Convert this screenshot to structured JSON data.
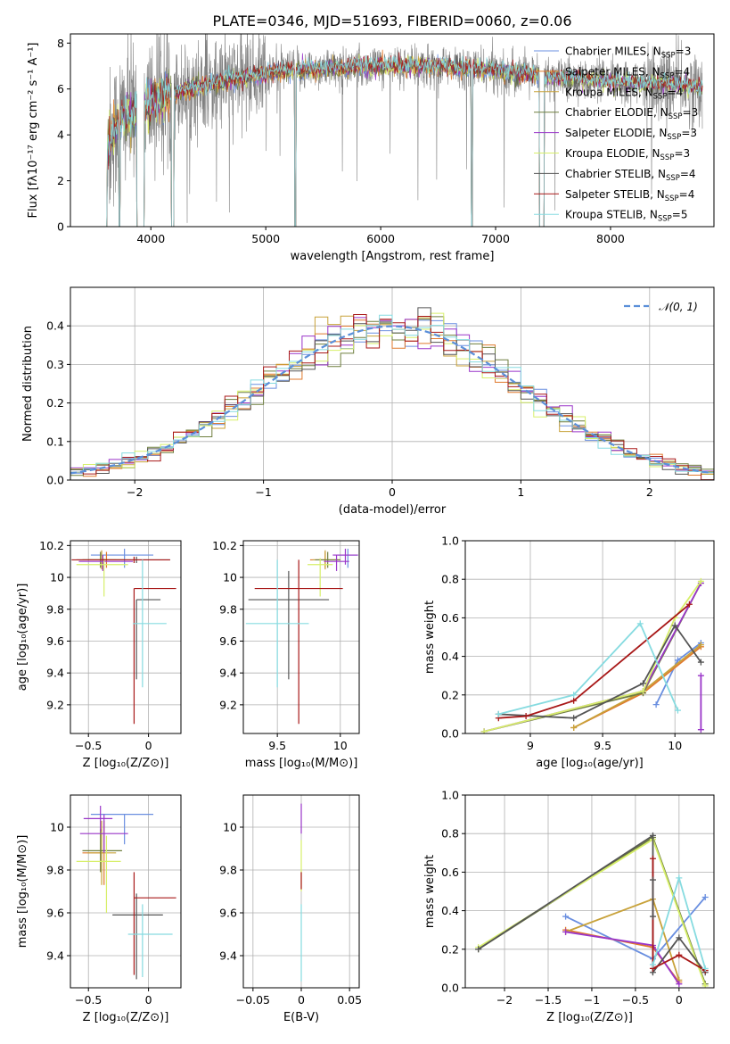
{
  "figure_title": "PLATE=0346, MJD=51693, FIBERID=0060, z=0.06",
  "colors": {
    "Chabrier MILES": "#6a8fe0",
    "Salpeter MILES": "#e07a2e",
    "Kroupa MILES": "#c8a23a",
    "Chabrier ELODIE": "#6f7f3f",
    "Salpeter ELODIE": "#9a35c9",
    "Kroupa ELODIE": "#d7ef6a",
    "Chabrier STELIB": "#555555",
    "Salpeter STELIB": "#a81818",
    "Kroupa STELIB": "#86dbe0",
    "data": "#808080",
    "normal": "#5b8fd9"
  },
  "chart_data": [
    {
      "id": "spectrum",
      "type": "line",
      "title": "PLATE=0346, MJD=51693, FIBERID=0060, z=0.06",
      "xlabel": "wavelength [Angstrom, rest frame]",
      "ylabel": "Flux [fλ10⁻¹⁷ erg cm⁻² s⁻¹ A⁻¹]",
      "xlim": [
        3300,
        8900
      ],
      "ylim": [
        0,
        8.4
      ],
      "xticks": [
        4000,
        5000,
        6000,
        7000,
        8000
      ],
      "yticks": [
        0,
        2,
        4,
        6,
        8
      ],
      "grid": false,
      "legend": "right",
      "legend_entries": [
        {
          "label": "Chabrier MILES, N",
          "sub": "SSP",
          "suffix": "=3"
        },
        {
          "label": "Salpeter MILES, N",
          "sub": "SSP",
          "suffix": "=4"
        },
        {
          "label": "Kroupa MILES, N",
          "sub": "SSP",
          "suffix": "=4"
        },
        {
          "label": "Chabrier ELODIE, N",
          "sub": "SSP",
          "suffix": "=3"
        },
        {
          "label": "Salpeter ELODIE, N",
          "sub": "SSP",
          "suffix": "=3"
        },
        {
          "label": "Kroupa ELODIE, N",
          "sub": "SSP",
          "suffix": "=3"
        },
        {
          "label": "Chabrier STELIB, N",
          "sub": "SSP",
          "suffix": "=4"
        },
        {
          "label": "Salpeter STELIB, N",
          "sub": "SSP",
          "suffix": "=4"
        },
        {
          "label": "Kroupa STELIB, N",
          "sub": "SSP",
          "suffix": "=5"
        }
      ],
      "continuum": [
        [
          3570,
          2.5
        ],
        [
          3650,
          3.8
        ],
        [
          3750,
          4.8
        ],
        [
          3900,
          5.0
        ],
        [
          4000,
          5.4
        ],
        [
          4200,
          5.8
        ],
        [
          4500,
          6.2
        ],
        [
          5000,
          6.7
        ],
        [
          5500,
          6.9
        ],
        [
          6000,
          7.0
        ],
        [
          6500,
          7.0
        ],
        [
          7000,
          6.8
        ],
        [
          7500,
          6.5
        ],
        [
          8000,
          6.3
        ],
        [
          8500,
          6.2
        ],
        [
          8800,
          6.0
        ]
      ],
      "gaps": [
        [
          3570,
          3620
        ],
        [
          3720,
          3730
        ],
        [
          3880,
          3940
        ],
        [
          4180,
          4200
        ],
        [
          5250,
          5260
        ],
        [
          6790,
          6800
        ],
        [
          7380,
          7420
        ]
      ]
    },
    {
      "id": "residuals",
      "type": "histogram",
      "xlabel": "(data-model)/error",
      "ylabel": "Normed distribution",
      "xlim": [
        -2.5,
        2.5
      ],
      "ylim": [
        0,
        0.5
      ],
      "xticks": [
        -2,
        -1,
        0,
        1,
        2
      ],
      "yticks": [
        0.0,
        0.1,
        0.2,
        0.3,
        0.4
      ],
      "grid": true,
      "bin_width": 0.1,
      "legend": "top-right",
      "legend_label": "𝒩(0, 1)"
    },
    {
      "id": "age-vs-Z",
      "type": "errorbar",
      "xlabel": "Z [log₁₀(Z/Z⊙)]",
      "ylabel": "age  [log₁₀(age/yr)]",
      "xlim": [
        -0.65,
        0.27
      ],
      "ylim": [
        9.02,
        10.23
      ],
      "xticks": [
        -0.5,
        0.0
      ],
      "yticks": [
        9.2,
        9.4,
        9.6,
        9.8,
        10.0,
        10.2
      ],
      "grid": true,
      "points": [
        {
          "model": "Chabrier MILES",
          "x": -0.2,
          "xerr": [
            0.28,
            0.24
          ],
          "y": 10.14,
          "yerr": [
            0.08,
            0.04
          ]
        },
        {
          "model": "Salpeter MILES",
          "x": -0.35,
          "xerr": [
            0.2,
            0.2
          ],
          "y": 10.11,
          "yerr": [
            0.05,
            0.05
          ]
        },
        {
          "model": "Kroupa MILES",
          "x": -0.39,
          "xerr": [
            0.12,
            0.12
          ],
          "y": 10.11,
          "yerr": [
            0.06,
            0.06
          ]
        },
        {
          "model": "Chabrier ELODIE",
          "x": -0.4,
          "xerr": [
            0.15,
            0.2
          ],
          "y": 10.11,
          "yerr": [
            0.05,
            0.05
          ]
        },
        {
          "model": "Salpeter ELODIE",
          "x": -0.38,
          "xerr": [
            0.2,
            0.25
          ],
          "y": 10.1,
          "yerr": [
            0.06,
            0.04
          ]
        },
        {
          "model": "Kroupa ELODIE",
          "x": -0.37,
          "xerr": [
            0.23,
            0.2
          ],
          "y": 10.08,
          "yerr": [
            0.2,
            0.04
          ]
        },
        {
          "model": "Chabrier STELIB",
          "x": -0.1,
          "xerr": [
            0.5,
            0.28
          ],
          "y": 10.11,
          "yerr": [
            0.02,
            0.02
          ]
        },
        {
          "model": "Salpeter STELIB",
          "x": -0.12,
          "xerr": [
            0.52,
            0.3
          ],
          "y": 10.11,
          "yerr": [
            0.02,
            0.02
          ]
        },
        {
          "model": "Chabrier STELIB",
          "x": -0.1,
          "xerr": [
            0.0,
            0.2
          ],
          "y": 9.86,
          "yerr": [
            0.5,
            0.0
          ]
        },
        {
          "model": "Salpeter STELIB",
          "x": -0.12,
          "xerr": [
            0.0,
            0.35
          ],
          "y": 9.93,
          "yerr": [
            0.85,
            0.0
          ]
        },
        {
          "model": "Kroupa STELIB",
          "x": -0.05,
          "xerr": [
            0.08,
            0.2
          ],
          "y": 9.71,
          "yerr": [
            0.4,
            0.4
          ]
        }
      ]
    },
    {
      "id": "age-vs-mass",
      "type": "errorbar",
      "xlabel": "mass [log₁₀(M/M⊙)]",
      "ylabel": "",
      "xlim": [
        9.23,
        10.15
      ],
      "ylim": [
        9.02,
        10.23
      ],
      "xticks": [
        9.5,
        10.0
      ],
      "yticks": [
        9.2,
        9.4,
        9.6,
        9.8,
        10.0,
        10.2
      ],
      "grid": true,
      "points": [
        {
          "model": "Chabrier MILES",
          "x": 10.06,
          "xerr": [
            0.08,
            0.08
          ],
          "y": 10.14,
          "yerr": [
            0.08,
            0.04
          ]
        },
        {
          "model": "Salpeter MILES",
          "x": 9.88,
          "xerr": [
            0.12,
            0.12
          ],
          "y": 10.11,
          "yerr": [
            0.05,
            0.05
          ]
        },
        {
          "model": "Kroupa MILES",
          "x": 9.88,
          "xerr": [
            0.1,
            0.1
          ],
          "y": 10.11,
          "yerr": [
            0.06,
            0.06
          ]
        },
        {
          "model": "Chabrier ELODIE",
          "x": 9.9,
          "xerr": [
            0.1,
            0.1
          ],
          "y": 10.11,
          "yerr": [
            0.05,
            0.05
          ]
        },
        {
          "model": "Salpeter ELODIE",
          "x": 9.97,
          "xerr": [
            0.1,
            0.1
          ],
          "y": 10.1,
          "yerr": [
            0.06,
            0.04
          ]
        },
        {
          "model": "Kroupa ELODIE",
          "x": 9.84,
          "xerr": [
            0.1,
            0.1
          ],
          "y": 10.08,
          "yerr": [
            0.2,
            0.04
          ]
        },
        {
          "model": "Chabrier STELIB",
          "x": 9.59,
          "xerr": [
            0.32,
            0.32
          ],
          "y": 9.86,
          "yerr": [
            0.5,
            0.18
          ]
        },
        {
          "model": "Salpeter STELIB",
          "x": 9.67,
          "xerr": [
            0.35,
            0.35
          ],
          "y": 9.93,
          "yerr": [
            0.85,
            0.18
          ]
        },
        {
          "model": "Kroupa STELIB",
          "x": 9.5,
          "xerr": [
            0.25,
            0.25
          ],
          "y": 9.71,
          "yerr": [
            0.4,
            0.4
          ]
        },
        {
          "model": "Salpeter ELODIE",
          "x": 10.04,
          "xerr": [
            0.1,
            0.1
          ],
          "y": 10.14,
          "yerr": [
            0.06,
            0.04
          ]
        }
      ]
    },
    {
      "id": "weight-vs-age",
      "type": "line",
      "xlabel": "age  [log₁₀(age/yr)]",
      "ylabel": "mass weight",
      "xlim": [
        8.55,
        10.27
      ],
      "ylim": [
        0.0,
        1.0
      ],
      "xticks": [
        9.0,
        9.5,
        10.0
      ],
      "yticks": [
        0.0,
        0.2,
        0.4,
        0.6,
        0.8,
        1.0
      ],
      "grid": true,
      "series": [
        {
          "model": "Chabrier MILES",
          "x": [
            9.87,
            10.02,
            10.18
          ],
          "y": [
            0.15,
            0.38,
            0.47
          ]
        },
        {
          "model": "Salpeter MILES",
          "x": [
            9.3,
            9.78,
            10.18
          ],
          "y": [
            0.03,
            0.21,
            0.45
          ]
        },
        {
          "model": "Kroupa MILES",
          "x": [
            9.3,
            9.78,
            10.18
          ],
          "y": [
            0.03,
            0.22,
            0.46
          ]
        },
        {
          "model": "Chabrier ELODIE",
          "x": [
            8.68,
            9.78,
            10.18
          ],
          "y": [
            0.01,
            0.21,
            0.78
          ]
        },
        {
          "model": "Salpeter ELODIE",
          "x": [
            8.68,
            9.78,
            10.18
          ],
          "y": [
            0.01,
            0.22,
            0.78
          ]
        },
        {
          "model": "Kroupa ELODIE",
          "x": [
            8.68,
            9.78,
            10.0,
            10.18
          ],
          "y": [
            0.01,
            0.22,
            0.6,
            0.79
          ]
        },
        {
          "model": "Chabrier STELIB",
          "x": [
            8.78,
            9.3,
            9.78,
            10.0,
            10.18
          ],
          "y": [
            0.1,
            0.08,
            0.26,
            0.56,
            0.37
          ]
        },
        {
          "model": "Salpeter STELIB",
          "x": [
            8.78,
            8.97,
            9.3,
            10.1
          ],
          "y": [
            0.08,
            0.09,
            0.17,
            0.67
          ]
        },
        {
          "model": "Kroupa STELIB",
          "x": [
            8.78,
            9.3,
            9.76,
            10.02
          ],
          "y": [
            0.1,
            0.2,
            0.57,
            0.12
          ]
        },
        {
          "model": "Salpeter ELODIE",
          "x": [
            10.18,
            10.18
          ],
          "y": [
            0.02,
            0.3
          ]
        }
      ]
    },
    {
      "id": "mass-vs-Z",
      "type": "errorbar",
      "xlabel": "Z [log₁₀(Z/Z⊙)]",
      "ylabel": "mass [log₁₀(M/M⊙)]",
      "xlim": [
        -0.65,
        0.27
      ],
      "ylim": [
        9.25,
        10.15
      ],
      "xticks": [
        -0.5,
        0.0
      ],
      "yticks": [
        9.4,
        9.6,
        9.8,
        10.0
      ],
      "grid": true,
      "points": [
        {
          "model": "Chabrier MILES",
          "x": -0.2,
          "xerr": [
            0.28,
            0.24
          ],
          "y": 10.06,
          "yerr": [
            0.14,
            0.0
          ]
        },
        {
          "model": "Salpeter MILES",
          "x": -0.37,
          "xerr": [
            0.18,
            0.0
          ],
          "y": 9.88,
          "yerr": [
            0.15,
            0.15
          ]
        },
        {
          "model": "Kroupa MILES",
          "x": -0.39,
          "xerr": [
            0.12,
            0.12
          ],
          "y": 9.88,
          "yerr": [
            0.15,
            0.15
          ]
        },
        {
          "model": "Chabrier ELODIE",
          "x": -0.4,
          "xerr": [
            0.15,
            0.18
          ],
          "y": 9.89,
          "yerr": [
            0.1,
            0.1
          ]
        },
        {
          "model": "Salpeter ELODIE",
          "x": -0.37,
          "xerr": [
            0.2,
            0.2
          ],
          "y": 9.97,
          "yerr": [
            0.09,
            0.09
          ]
        },
        {
          "model": "Kroupa ELODIE",
          "x": -0.35,
          "xerr": [
            0.25,
            0.12
          ],
          "y": 9.84,
          "yerr": [
            0.24,
            0.12
          ]
        },
        {
          "model": "Chabrier STELIB",
          "x": -0.1,
          "xerr": [
            0.2,
            0.22
          ],
          "y": 9.59,
          "yerr": [
            0.3,
            0.1
          ]
        },
        {
          "model": "Salpeter STELIB",
          "x": -0.12,
          "xerr": [
            0.0,
            0.35
          ],
          "y": 9.67,
          "yerr": [
            0.36,
            0.12
          ]
        },
        {
          "model": "Kroupa STELIB",
          "x": -0.05,
          "xerr": [
            0.12,
            0.25
          ],
          "y": 9.5,
          "yerr": [
            0.2,
            0.14
          ]
        },
        {
          "model": "Salpeter ELODIE",
          "x": -0.4,
          "xerr": [
            0.14,
            0.1
          ],
          "y": 10.04,
          "yerr": [
            0.06,
            0.06
          ]
        }
      ]
    },
    {
      "id": "mass-vs-EBV",
      "type": "errorbar",
      "xlabel": "E(B-V)",
      "ylabel": "",
      "xlim": [
        -0.06,
        0.06
      ],
      "ylim": [
        9.25,
        10.15
      ],
      "xticks": [
        -0.05,
        0.0,
        0.05
      ],
      "yticks": [
        9.4,
        9.6,
        9.8,
        10.0
      ],
      "grid": true,
      "points": [
        {
          "model": "Salpeter ELODIE",
          "x": 0.0,
          "xerr": [
            0.0,
            0.0
          ],
          "y": 10.04,
          "yerr": [
            0.07,
            0.07
          ]
        },
        {
          "model": "Kroupa ELODIE",
          "x": 0.0,
          "xerr": [
            0.0,
            0.0
          ],
          "y": 9.84,
          "yerr": [
            0.14,
            0.1
          ]
        },
        {
          "model": "Salpeter STELIB",
          "x": 0.0,
          "xerr": [
            0.0,
            0.0
          ],
          "y": 9.75,
          "yerr": [
            0.04,
            0.04
          ]
        },
        {
          "model": "Kroupa STELIB",
          "x": 0.0,
          "xerr": [
            0.0,
            0.0
          ],
          "y": 9.5,
          "yerr": [
            0.22,
            0.14
          ]
        }
      ]
    },
    {
      "id": "weight-vs-Z",
      "type": "line",
      "xlabel": "Z [log₁₀(Z/Z⊙)]",
      "ylabel": "mass weight",
      "xlim": [
        -2.45,
        0.4
      ],
      "ylim": [
        0.0,
        1.0
      ],
      "xticks": [
        -2.0,
        -1.5,
        -1.0,
        -0.5,
        0.0
      ],
      "yticks": [
        0.0,
        0.2,
        0.4,
        0.6,
        0.8,
        1.0
      ],
      "grid": true,
      "series": [
        {
          "model": "Chabrier MILES",
          "x": [
            -1.3,
            -0.3,
            0.3
          ],
          "y": [
            0.37,
            0.15,
            0.47
          ]
        },
        {
          "model": "Salpeter MILES",
          "x": [
            -1.3,
            -0.3,
            0.0
          ],
          "y": [
            0.3,
            0.21,
            0.03
          ]
        },
        {
          "model": "Kroupa MILES",
          "x": [
            -1.3,
            -0.3,
            0.0
          ],
          "y": [
            0.29,
            0.46,
            0.04
          ]
        },
        {
          "model": "Chabrier ELODIE",
          "x": [
            -2.3,
            -0.3,
            0.3
          ],
          "y": [
            0.2,
            0.78,
            0.02
          ]
        },
        {
          "model": "Salpeter ELODIE",
          "x": [
            -1.3,
            -0.3,
            0.0
          ],
          "y": [
            0.29,
            0.22,
            0.02
          ]
        },
        {
          "model": "Kroupa ELODIE",
          "x": [
            -2.3,
            -0.3,
            0.3
          ],
          "y": [
            0.21,
            0.77,
            0.01
          ]
        },
        {
          "model": "Chabrier STELIB",
          "x": [
            -2.3,
            -0.3,
            -0.3,
            0.0,
            0.3
          ],
          "y": [
            0.2,
            0.79,
            0.08,
            0.26,
            0.08
          ]
        },
        {
          "model": "Salpeter STELIB",
          "x": [
            -0.3,
            -0.3,
            0.0,
            0.3
          ],
          "y": [
            0.67,
            0.1,
            0.17,
            0.09
          ]
        },
        {
          "model": "Kroupa STELIB",
          "x": [
            -0.3,
            0.0,
            0.3
          ],
          "y": [
            0.12,
            0.57,
            0.1
          ]
        },
        {
          "model": "Chabrier STELIB",
          "x": [
            -0.3,
            -0.3
          ],
          "y": [
            0.37,
            0.56
          ]
        }
      ]
    }
  ]
}
